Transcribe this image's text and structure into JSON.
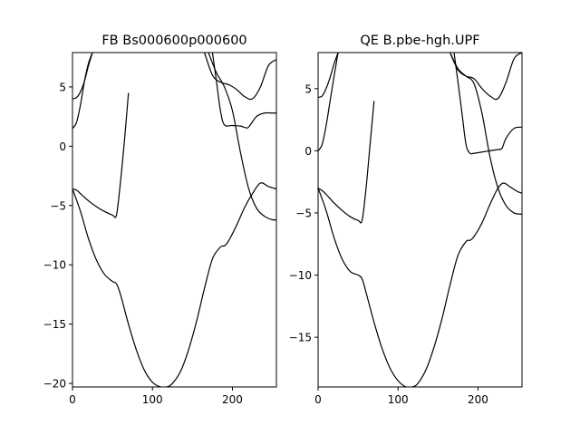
{
  "chart_data": [
    {
      "type": "line",
      "title": "FB Bs000600p000600",
      "xlabel": "",
      "ylabel": "",
      "xlim": [
        0,
        255
      ],
      "ylim": [
        -20.3,
        7.9
      ],
      "xticks": [
        0,
        100,
        200
      ],
      "xtick_labels": [
        "0",
        "100",
        "200"
      ],
      "yticks": [
        5,
        0,
        -5,
        -10,
        -15,
        -20
      ],
      "ytick_labels": [
        "5",
        "0",
        "−5",
        "−10",
        "−15",
        "−20"
      ],
      "grid": false,
      "line_color": "#000000",
      "series": [
        {
          "x": [
            0,
            10,
            20,
            30,
            40,
            50,
            55,
            60,
            70,
            80,
            90,
            100,
            110,
            118,
            125,
            135,
            145,
            155,
            165,
            175,
            185,
            190,
            195,
            205,
            215,
            225,
            235,
            245,
            255
          ],
          "values": [
            -3.6,
            -5.5,
            -7.8,
            -9.6,
            -10.8,
            -11.4,
            -11.6,
            -12.5,
            -15.0,
            -17.2,
            -18.9,
            -19.9,
            -20.3,
            -20.3,
            -20.0,
            -19.0,
            -17.2,
            -14.8,
            -12.0,
            -9.5,
            -8.5,
            -8.4,
            -8.0,
            -6.7,
            -5.2,
            -4.0,
            -3.1,
            -3.4,
            -3.6
          ]
        },
        {
          "x": [
            0,
            5,
            10,
            20,
            30,
            40,
            50,
            55,
            60,
            65,
            70
          ],
          "values": [
            -3.6,
            -3.7,
            -4.0,
            -4.6,
            -5.1,
            -5.5,
            -5.8,
            -5.8,
            -3.0,
            0.5,
            4.5
          ]
        },
        {
          "x": [
            175,
            180,
            185,
            190,
            200,
            210,
            215,
            220,
            230,
            240,
            250,
            255
          ],
          "values": [
            7.9,
            5.5,
            3.0,
            1.8,
            1.75,
            1.7,
            1.6,
            1.6,
            2.5,
            2.8,
            2.8,
            2.8
          ]
        },
        {
          "x": [
            0,
            5,
            10,
            15,
            20,
            25
          ],
          "values": [
            1.5,
            2.0,
            3.5,
            5.5,
            7.0,
            7.9
          ]
        },
        {
          "x": [
            0,
            5,
            10,
            15,
            20,
            25
          ],
          "values": [
            4.0,
            4.1,
            4.6,
            5.5,
            6.8,
            7.9
          ]
        },
        {
          "x": [
            165,
            175,
            185,
            195,
            205,
            215,
            225,
            235,
            245,
            255
          ],
          "values": [
            7.9,
            6.0,
            5.4,
            5.2,
            4.8,
            4.2,
            4.0,
            5.0,
            6.8,
            7.3
          ]
        },
        {
          "x": [
            170,
            180,
            190,
            200,
            210,
            220,
            230,
            240,
            250,
            255
          ],
          "values": [
            7.9,
            6.2,
            5.0,
            3.0,
            -0.5,
            -3.5,
            -5.2,
            -5.9,
            -6.2,
            -6.2
          ]
        }
      ]
    },
    {
      "type": "line",
      "title": "QE B.pbe-hgh.UPF",
      "xlabel": "",
      "ylabel": "",
      "xlim": [
        0,
        255
      ],
      "ylim": [
        -19.0,
        7.9
      ],
      "xticks": [
        0,
        100,
        200
      ],
      "xtick_labels": [
        "0",
        "100",
        "200"
      ],
      "yticks": [
        5,
        0,
        -5,
        -10,
        -15
      ],
      "ytick_labels": [
        "5",
        "0",
        "−5",
        "−10",
        "−15"
      ],
      "grid": false,
      "line_color": "#000000",
      "series": [
        {
          "x": [
            0,
            10,
            20,
            30,
            40,
            50,
            55,
            60,
            70,
            80,
            90,
            100,
            110,
            118,
            125,
            135,
            145,
            155,
            165,
            175,
            185,
            190,
            195,
            205,
            215,
            225,
            232,
            240,
            250,
            255
          ],
          "values": [
            -3.0,
            -4.8,
            -7.0,
            -8.7,
            -9.7,
            -10.0,
            -10.3,
            -11.4,
            -13.8,
            -15.9,
            -17.5,
            -18.5,
            -19.0,
            -19.0,
            -18.7,
            -17.6,
            -15.8,
            -13.5,
            -10.8,
            -8.4,
            -7.3,
            -7.2,
            -6.9,
            -5.8,
            -4.3,
            -3.0,
            -2.6,
            -2.9,
            -3.3,
            -3.4
          ]
        },
        {
          "x": [
            0,
            5,
            10,
            20,
            30,
            40,
            50,
            55,
            60,
            65,
            70
          ],
          "values": [
            -3.0,
            -3.2,
            -3.5,
            -4.2,
            -4.8,
            -5.3,
            -5.6,
            -5.6,
            -3.0,
            0.5,
            4.0
          ]
        },
        {
          "x": [
            170,
            175,
            180,
            185,
            190,
            195,
            205,
            215,
            225,
            230,
            235,
            245,
            255
          ],
          "values": [
            7.9,
            5.5,
            3.0,
            0.5,
            -0.2,
            -0.2,
            -0.1,
            0.0,
            0.1,
            0.2,
            1.0,
            1.8,
            1.9
          ]
        },
        {
          "x": [
            0,
            5,
            10,
            15,
            20,
            25
          ],
          "values": [
            0.0,
            0.5,
            2.0,
            4.0,
            6.0,
            7.9
          ]
        },
        {
          "x": [
            0,
            5,
            10,
            15,
            20,
            25
          ],
          "values": [
            4.3,
            4.4,
            5.0,
            5.9,
            7.0,
            7.9
          ]
        },
        {
          "x": [
            165,
            175,
            185,
            195,
            205,
            215,
            225,
            235,
            245,
            255
          ],
          "values": [
            7.9,
            6.5,
            6.0,
            5.8,
            5.0,
            4.4,
            4.2,
            5.5,
            7.4,
            7.9
          ]
        },
        {
          "x": [
            165,
            175,
            185,
            195,
            205,
            215,
            225,
            235,
            245,
            255
          ],
          "values": [
            7.9,
            6.6,
            6.0,
            5.4,
            3.0,
            -0.5,
            -3.0,
            -4.4,
            -5.0,
            -5.1
          ]
        }
      ]
    }
  ]
}
